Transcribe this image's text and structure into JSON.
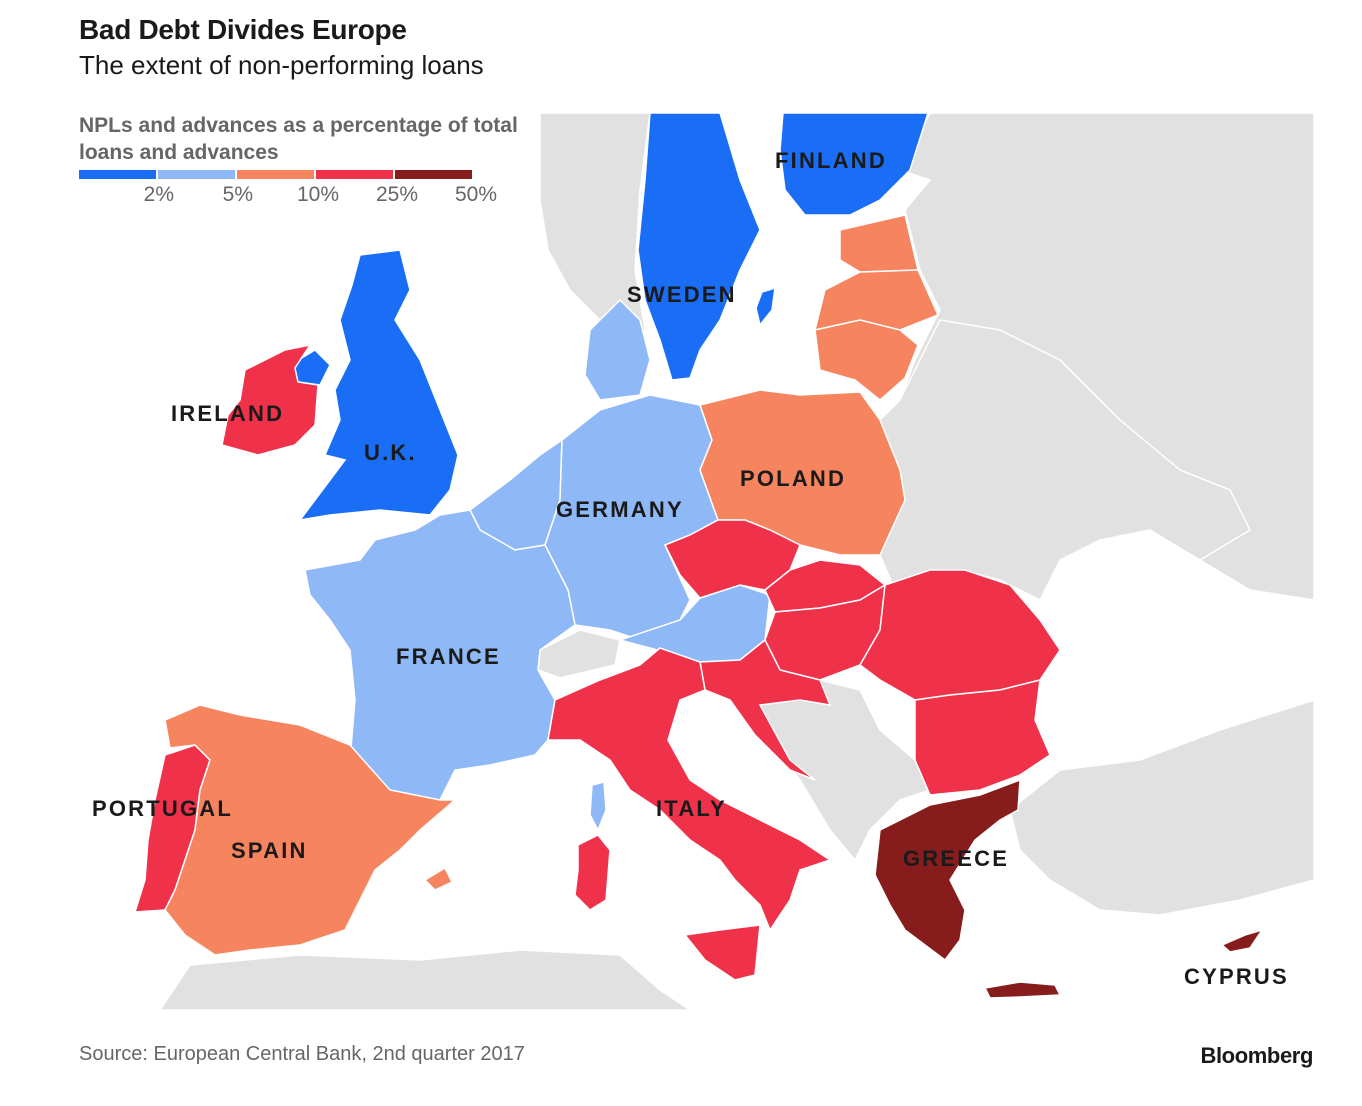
{
  "header": {
    "title": "Bad Debt Divides Europe",
    "subtitle": "The extent of non-performing loans"
  },
  "legend": {
    "title": "NPLs and advances as a percentage of total loans and advances",
    "ticks": [
      "2%",
      "5%",
      "10%",
      "25%",
      "50%"
    ],
    "colors": [
      "#1a6ef5",
      "#8fb8f7",
      "#f5845f",
      "#f0314a",
      "#861c1c"
    ]
  },
  "colors": {
    "sea": "#ffffff",
    "land_no_data": "#e1e1e1",
    "border": "#ffffff"
  },
  "countries": [
    {
      "name": "FINLAND",
      "band": 0
    },
    {
      "name": "SWEDEN",
      "band": 0
    },
    {
      "name": "U.K.",
      "band": 0
    },
    {
      "name": "IRELAND",
      "band": 3
    },
    {
      "name": "GERMANY",
      "band": 1
    },
    {
      "name": "FRANCE",
      "band": 1
    },
    {
      "name": "POLAND",
      "band": 2
    },
    {
      "name": "ITALY",
      "band": 3
    },
    {
      "name": "PORTUGAL",
      "band": 3
    },
    {
      "name": "SPAIN",
      "band": 2
    },
    {
      "name": "GREECE",
      "band": 4
    },
    {
      "name": "CYPRUS",
      "band": 4
    }
  ],
  "footer": {
    "source": "Source: European Central Bank, 2nd quarter 2017",
    "brand": "Bloomberg"
  }
}
